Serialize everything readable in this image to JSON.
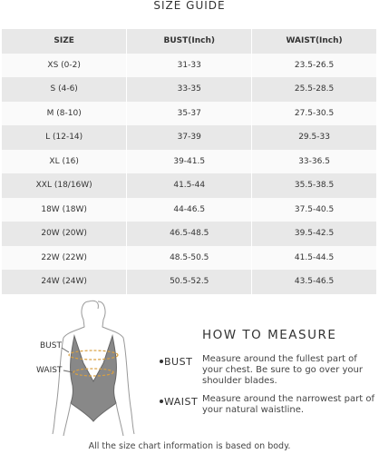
{
  "title": "SIZE GUIDE",
  "table": {
    "header": [
      "SIZE",
      "BUST(Inch)",
      "WAIST(Inch)"
    ],
    "rows": [
      [
        "XS (0-2)",
        "31-33",
        "23.5-26.5"
      ],
      [
        "S (4-6)",
        "33-35",
        "25.5-28.5"
      ],
      [
        "M (8-10)",
        "35-37",
        "27.5-30.5"
      ],
      [
        "L (12-14)",
        "37-39",
        "29.5-33"
      ],
      [
        "XL (16)",
        "39-41.5",
        "33-36.5"
      ],
      [
        "XXL (18/16W)",
        "41.5-44",
        "35.5-38.5"
      ],
      [
        "18W (18W)",
        "44-46.5",
        "37.5-40.5"
      ],
      [
        "20W (20W)",
        "46.5-48.5",
        "39.5-42.5"
      ],
      [
        "22W (22W)",
        "48.5-50.5",
        "41.5-44.5"
      ],
      [
        "24W (24W)",
        "50.5-52.5",
        "43.5-46.5"
      ]
    ]
  },
  "figure_labels": {
    "bust": "BUST",
    "waist": "WAIST"
  },
  "how_to_measure": {
    "title": "HOW TO MEASURE",
    "items": [
      {
        "label": "BUST",
        "text": "Measure around the fullest part of your chest. Be sure to go over your shoulder blades."
      },
      {
        "label": "WAIST",
        "text": "Measure around the narrowest part of your natural waistline."
      }
    ]
  },
  "footer": "All the size chart information is based on body."
}
